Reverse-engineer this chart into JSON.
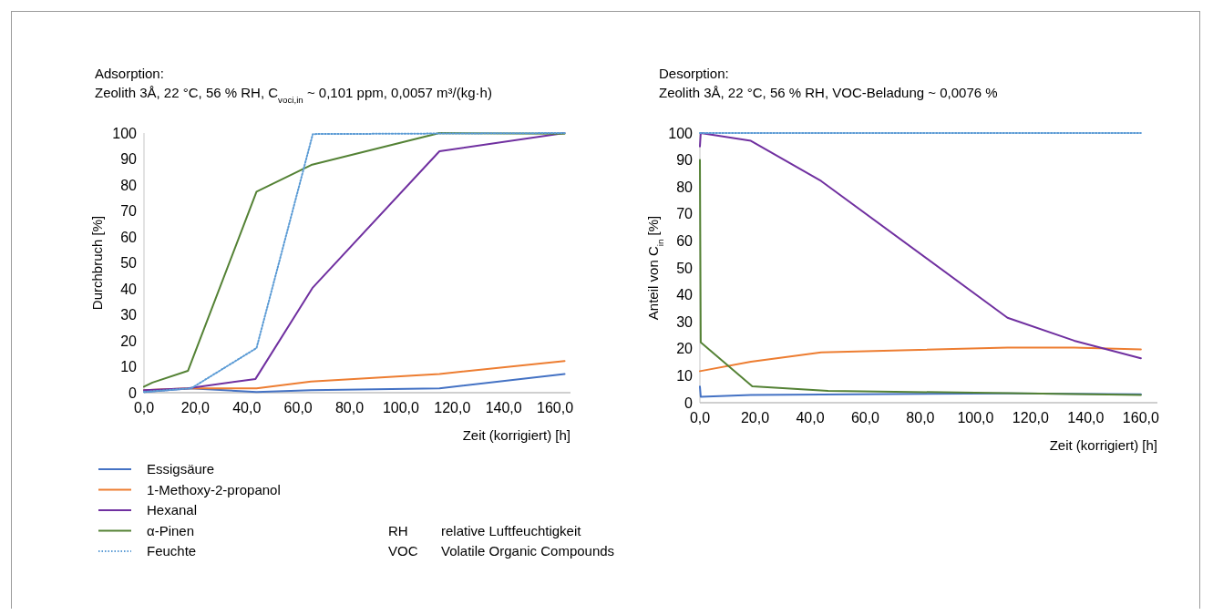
{
  "chart_data": [
    {
      "type": "line",
      "title": "Adsorption:",
      "subtitle": "Zeolith 3Å, 22 °C, 56 % RH, C$_{voci,in}$ ~ 0,101 ppm, 0,0057 m³/(kg·h)",
      "xlabel": "Zeit (korrigiert) [h]",
      "ylabel": "Durchbruch [%]",
      "xlim": [
        0,
        166
      ],
      "xticks": [
        {
          "value": 0,
          "label": "0,0"
        },
        {
          "value": 20,
          "label": "20,0"
        },
        {
          "value": 40,
          "label": "40,0"
        },
        {
          "value": 60,
          "label": "60,0"
        },
        {
          "value": 80,
          "label": "80,0"
        },
        {
          "value": 100,
          "label": "100,0"
        },
        {
          "value": 120,
          "label": "120,0"
        },
        {
          "value": 140,
          "label": "140,0"
        },
        {
          "value": 160,
          "label": "160,0"
        }
      ],
      "ylim": [
        0,
        100
      ],
      "yticks": [
        0,
        10,
        20,
        30,
        40,
        50,
        60,
        70,
        80,
        90,
        100
      ],
      "grid": false,
      "legend": "bottom",
      "marker": "none",
      "series": [
        {
          "name": "Essigsäure",
          "color": "#4472c4",
          "line_style": "solid",
          "x": [
            0,
            18,
            43.8,
            65,
            115,
            163.7
          ],
          "values": [
            0.3,
            1.7,
            0.3,
            1,
            1.7,
            7.2
          ]
        },
        {
          "name": "1-Methoxy-2-propanol",
          "color": "#ed7d31",
          "line_style": "solid",
          "x": [
            0,
            17,
            43.8,
            65,
            115,
            163.7
          ],
          "values": [
            1,
            1.7,
            1.7,
            4.3,
            7.2,
            12.2
          ]
        },
        {
          "name": "Hexanal",
          "color": "#7030a0",
          "line_style": "solid",
          "x": [
            0,
            17,
            43.4,
            65.7,
            115,
            163.7
          ],
          "values": [
            1,
            1.7,
            5.3,
            40.5,
            93,
            100
          ]
        },
        {
          "name": "α-Pinen",
          "color": "#548235",
          "line_style": "solid",
          "x": [
            0,
            3.3,
            17.1,
            43.8,
            65.1,
            115,
            163.7
          ],
          "values": [
            2.3,
            3.9,
            8.4,
            77.4,
            87.7,
            100,
            99.7
          ]
        },
        {
          "name": "Feuchte",
          "color": "#5b9bd5",
          "line_style": "dotted",
          "x": [
            0,
            18.4,
            43.8,
            65.7,
            163.7
          ],
          "values": [
            0.3,
            1.7,
            17.2,
            99.6,
            100
          ]
        }
      ],
      "annotations": [
        "RH relative Luftfeuchtigkeit",
        "VOC Volatile Organic Compounds"
      ]
    },
    {
      "type": "line",
      "title": "Desorption:",
      "subtitle": "Zeolith 3Å, 22 °C, 56 % RH, VOC-Beladung ~ 0,0076 %",
      "xlabel": "Zeit (korrigiert) [h]",
      "ylabel": "Anteil von C$_{in}$ [%]",
      "xlim": [
        0,
        166
      ],
      "xticks": [
        {
          "value": 0,
          "label": "0,0"
        },
        {
          "value": 20,
          "label": "20,0"
        },
        {
          "value": 40,
          "label": "40,0"
        },
        {
          "value": 60,
          "label": "60,0"
        },
        {
          "value": 80,
          "label": "80,0"
        },
        {
          "value": 100,
          "label": "100,0"
        },
        {
          "value": 120,
          "label": "120,0"
        },
        {
          "value": 140,
          "label": "140,0"
        },
        {
          "value": 160,
          "label": "160,0"
        }
      ],
      "ylim": [
        0,
        100
      ],
      "yticks": [
        0,
        10,
        20,
        30,
        40,
        50,
        60,
        70,
        80,
        90,
        100
      ],
      "grid": false,
      "marker": "none",
      "series": [
        {
          "color": "#4472c4",
          "line_style": "solid",
          "x": [
            0,
            0.3,
            18.5,
            111.6,
            160
          ],
          "values": [
            6,
            2.2,
            2.9,
            3.5,
            3.1
          ]
        },
        {
          "color": "#ed7d31",
          "line_style": "solid",
          "x": [
            0,
            18.5,
            44,
            111.6,
            135.8,
            160
          ],
          "values": [
            11.7,
            15.2,
            18.7,
            20.4,
            20.4,
            19.8
          ]
        },
        {
          "color": "#7030a0",
          "line_style": "solid",
          "x": [
            0,
            0.3,
            18.5,
            44,
            111.6,
            135.8,
            160
          ],
          "values": [
            95,
            100,
            97.1,
            82.2,
            31.5,
            23,
            16.5
          ]
        },
        {
          "color": "#548235",
          "line_style": "solid",
          "x": [
            0,
            0.3,
            19,
            46.5,
            160
          ],
          "values": [
            90,
            22.4,
            6.1,
            4.4,
            2.9
          ]
        },
        {
          "color": "#5b9bd5",
          "line_style": "dotted",
          "x": [
            0,
            160
          ],
          "values": [
            100,
            100
          ]
        }
      ]
    }
  ]
}
